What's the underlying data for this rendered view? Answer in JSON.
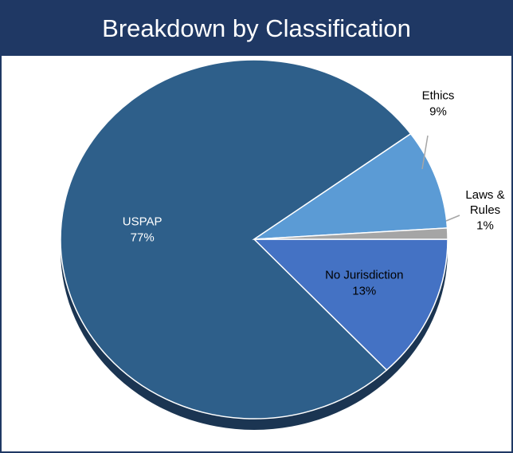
{
  "chart_data": {
    "type": "pie",
    "title": "Breakdown by Classification",
    "categories": [
      "No Jurisdiction",
      "USPAP",
      "Ethics",
      "Laws & Rules"
    ],
    "values": [
      13,
      77,
      9,
      1
    ],
    "value_labels": [
      "13%",
      "77%",
      "9%",
      "1%"
    ],
    "colors": [
      "#4472c4",
      "#2e5f8a",
      "#5b9bd5",
      "#a5a5a5"
    ]
  }
}
